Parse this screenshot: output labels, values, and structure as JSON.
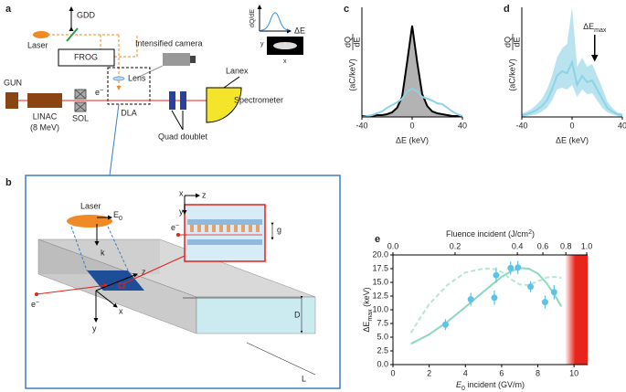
{
  "diagram_a": {
    "label": "a",
    "gdd": "GDD",
    "laser": "Laser",
    "frog": "FROG",
    "lens": "Lens",
    "camera": "Intensified camera",
    "inset_y": "dQ/dE",
    "inset_x": "ΔE",
    "img_y": "y",
    "img_x": "x",
    "lanex": "Lanex",
    "gun": "GUN",
    "linac": "LINAC",
    "linac_energy": "(8 MeV)",
    "sol": "SOL",
    "electron": "e",
    "electron_sup": "−",
    "dla": "DLA",
    "spectrometer": "Spectrometer",
    "quad": "Quad doublet"
  },
  "diagram_b": {
    "label": "b",
    "laser": "Laser",
    "field": "E",
    "field_sub": "0",
    "k": "k",
    "electron": "e",
    "electron_sup": "−",
    "z": "z",
    "x": "x",
    "y": "y",
    "D": "D",
    "L": "L",
    "inset_x": "x",
    "inset_z": "z",
    "inset_y": "y",
    "g": "g",
    "inset_electron": "e",
    "inset_electron_sup": "−"
  },
  "chart_data": [
    {
      "type": "line",
      "label": "c",
      "xlabel": "ΔE (keV)",
      "ylabel_num": "dQ",
      "ylabel_den": "dE",
      "ylabel_unit": "(aC/keV)",
      "x": [
        -40,
        -36,
        -32,
        -28,
        -24,
        -20,
        -16,
        -12,
        -8,
        -4,
        0,
        4,
        8,
        12,
        16,
        20,
        24,
        28,
        32,
        36,
        40
      ],
      "xlim": [
        -40,
        40
      ],
      "xticks": [
        -40,
        0,
        40
      ],
      "ylim": [
        0,
        1.2
      ],
      "series": [
        {
          "color": "#000000",
          "fill": "#b3b3b3",
          "values": [
            0.01,
            0.01,
            0.01,
            0.02,
            0.02,
            0.03,
            0.05,
            0.1,
            0.22,
            0.6,
            1.0,
            0.6,
            0.25,
            0.12,
            0.06,
            0.04,
            0.03,
            0.02,
            0.01,
            0.01,
            0.01
          ]
        },
        {
          "color": "#8dd3e8",
          "values": [
            0.0,
            0.01,
            0.02,
            0.04,
            0.06,
            0.1,
            0.13,
            0.16,
            0.2,
            0.28,
            0.31,
            0.28,
            0.22,
            0.2,
            0.18,
            0.15,
            0.14,
            0.1,
            0.06,
            0.03,
            0.01
          ]
        }
      ]
    },
    {
      "type": "line",
      "label": "d",
      "xlabel": "ΔE (keV)",
      "ylabel_num": "dQ",
      "ylabel_den": "dE",
      "ylabel_unit": "(aC/keV)",
      "annotation": "ΔE",
      "annotation_sub": "max",
      "x": [
        -40,
        -36,
        -32,
        -28,
        -24,
        -20,
        -16,
        -12,
        -8,
        -4,
        0,
        4,
        8,
        12,
        16,
        20,
        24,
        28,
        32,
        36,
        40
      ],
      "xlim": [
        -40,
        40
      ],
      "xticks": [
        -40,
        0,
        40
      ],
      "ylim": [
        0,
        1.2
      ],
      "series": [
        {
          "color": "#8dd3e8",
          "band_color": "#a9dcec",
          "values": [
            0.02,
            0.03,
            0.05,
            0.08,
            0.12,
            0.18,
            0.3,
            0.45,
            0.5,
            0.48,
            0.6,
            0.35,
            0.45,
            0.38,
            0.4,
            0.3,
            0.2,
            0.1,
            0.06,
            0.03,
            0.02
          ],
          "band_low": [
            0,
            0.01,
            0.02,
            0.03,
            0.06,
            0.1,
            0.18,
            0.3,
            0.32,
            0.3,
            0.35,
            0.22,
            0.3,
            0.25,
            0.26,
            0.18,
            0.1,
            0.05,
            0.03,
            0.01,
            0
          ],
          "band_high": [
            0.04,
            0.06,
            0.09,
            0.14,
            0.2,
            0.3,
            0.45,
            0.65,
            0.75,
            0.8,
            1.2,
            0.55,
            0.65,
            0.55,
            0.58,
            0.45,
            0.32,
            0.17,
            0.1,
            0.05,
            0.04
          ]
        }
      ]
    },
    {
      "type": "scatter",
      "label": "e",
      "xlabel": "E",
      "xlabel_sub": "0",
      "xlabel_rest": " incident (GV/m)",
      "ylabel": "ΔE",
      "ylabel_sub": "max",
      "ylabel_unit": " (keV)",
      "x2label": "Fluence incident (J/cm",
      "x2label_sup": "2",
      "x2label_end": ")",
      "xlim": [
        0,
        10.75
      ],
      "xticks": [
        0,
        2,
        4,
        6,
        8,
        10
      ],
      "ylim": [
        0,
        20
      ],
      "yticks": [
        {
          "value": 0,
          "label": "0.0"
        },
        2.5,
        {
          "value": 5,
          "label": "5.0"
        },
        7.5,
        {
          "value": 10,
          "label": "10.0"
        },
        12.5,
        {
          "value": 15,
          "label": "15.0"
        },
        17.5,
        {
          "value": 20,
          "label": "20.0"
        }
      ],
      "x2ticks": [
        {
          "value": 0,
          "label": "0.0"
        },
        {
          "value": 0.2,
          "label": "0.2"
        },
        {
          "value": 0.4,
          "label": "0.4"
        },
        {
          "value": 0.6,
          "label": "0.6"
        },
        {
          "value": 0.8,
          "label": "0.8"
        },
        {
          "value": 1,
          "label": "1.0"
        }
      ],
      "x2ticks_at_x": [
        0,
        3.43,
        6.87,
        8.28,
        9.55,
        10.7
      ],
      "shade_x": [
        9.5,
        10.75
      ],
      "shade_color": "#e8251b",
      "series": [
        {
          "type": "line",
          "color": "#8ed8bd",
          "dash": false,
          "x": [
            1,
            2,
            3,
            4,
            5,
            6,
            6.5,
            7,
            7.5,
            8,
            8.5,
            9,
            9.3
          ],
          "values": [
            3.8,
            5.5,
            7.8,
            10.5,
            13.3,
            16,
            17,
            17.6,
            17.5,
            16.6,
            14.8,
            12.3,
            10.6
          ]
        },
        {
          "type": "line",
          "color": "#b6e6d4",
          "dash": true,
          "x": [
            1,
            1.5,
            2,
            3,
            4,
            5,
            5.5,
            6,
            6.5,
            7,
            7.5,
            8,
            8.5,
            9,
            9.3
          ],
          "values": [
            5.8,
            8.5,
            11,
            14.5,
            16.8,
            17.5,
            17.5,
            16.9,
            15.6,
            14.6,
            14.5,
            15.2,
            15.9,
            16,
            15.8
          ]
        },
        {
          "type": "scatter",
          "color": "#5bc3e8",
          "x": [
            2.9,
            4.3,
            5.6,
            5.7,
            6.5,
            6.9,
            7.6,
            8.4,
            8.9
          ],
          "values": [
            7.3,
            11.9,
            12.2,
            16.3,
            17.6,
            17.7,
            14.2,
            11.4,
            13.2
          ],
          "errors": [
            1.0,
            1.2,
            1.3,
            1.4,
            1.2,
            1.2,
            1.0,
            1.2,
            1.3
          ]
        }
      ]
    }
  ]
}
